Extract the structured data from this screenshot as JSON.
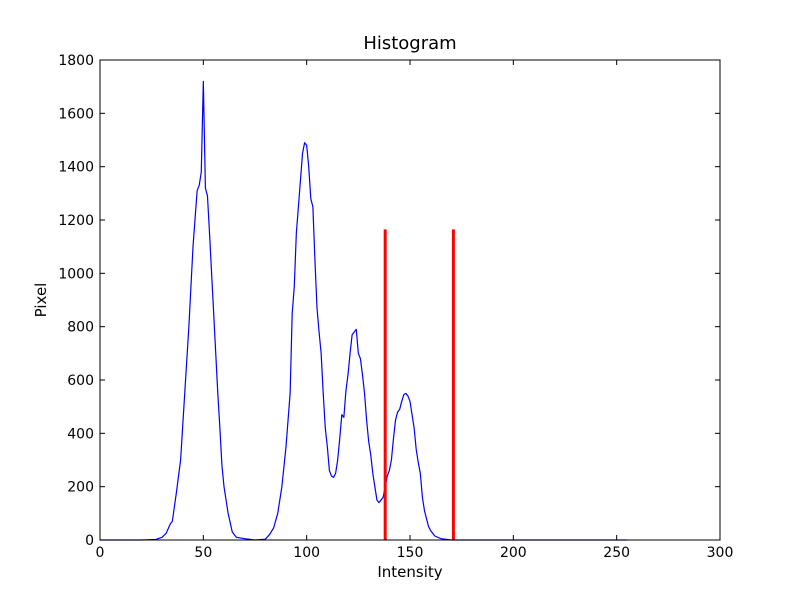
{
  "chart_data": {
    "type": "line",
    "title": "Histogram",
    "xlabel": "Intensity",
    "ylabel": "Pixel",
    "xlim": [
      0,
      300
    ],
    "ylim": [
      0,
      1800
    ],
    "xticks": [
      "0",
      "50",
      "100",
      "150",
      "200",
      "250",
      "300"
    ],
    "yticks": [
      "0",
      "200",
      "400",
      "600",
      "800",
      "1000",
      "1200",
      "1400",
      "1600",
      "1800"
    ],
    "grid": false,
    "legend": "none",
    "series": [
      {
        "color": "#0000ff",
        "points": [
          [
            0,
            0
          ],
          [
            10,
            0
          ],
          [
            20,
            0
          ],
          [
            27,
            2
          ],
          [
            30,
            10
          ],
          [
            32,
            25
          ],
          [
            34,
            60
          ],
          [
            35,
            70
          ],
          [
            37,
            180
          ],
          [
            39,
            300
          ],
          [
            41,
            550
          ],
          [
            43,
            800
          ],
          [
            45,
            1100
          ],
          [
            47,
            1310
          ],
          [
            48,
            1330
          ],
          [
            49,
            1380
          ],
          [
            50,
            1720
          ],
          [
            51,
            1320
          ],
          [
            52,
            1290
          ],
          [
            53,
            1150
          ],
          [
            54,
            1000
          ],
          [
            55,
            850
          ],
          [
            56,
            700
          ],
          [
            57,
            550
          ],
          [
            58,
            420
          ],
          [
            59,
            280
          ],
          [
            60,
            200
          ],
          [
            62,
            100
          ],
          [
            64,
            30
          ],
          [
            66,
            10
          ],
          [
            70,
            5
          ],
          [
            75,
            0
          ],
          [
            80,
            3
          ],
          [
            82,
            20
          ],
          [
            84,
            45
          ],
          [
            86,
            100
          ],
          [
            88,
            200
          ],
          [
            90,
            350
          ],
          [
            92,
            550
          ],
          [
            93,
            850
          ],
          [
            94,
            950
          ],
          [
            95,
            1150
          ],
          [
            96,
            1250
          ],
          [
            97,
            1350
          ],
          [
            98,
            1450
          ],
          [
            99,
            1490
          ],
          [
            100,
            1480
          ],
          [
            101,
            1400
          ],
          [
            102,
            1280
          ],
          [
            103,
            1250
          ],
          [
            104,
            1050
          ],
          [
            105,
            870
          ],
          [
            106,
            780
          ],
          [
            107,
            700
          ],
          [
            108,
            550
          ],
          [
            109,
            420
          ],
          [
            110,
            350
          ],
          [
            111,
            260
          ],
          [
            112,
            240
          ],
          [
            113,
            235
          ],
          [
            114,
            250
          ],
          [
            115,
            300
          ],
          [
            116,
            380
          ],
          [
            117,
            470
          ],
          [
            118,
            460
          ],
          [
            119,
            560
          ],
          [
            120,
            620
          ],
          [
            121,
            700
          ],
          [
            122,
            770
          ],
          [
            123,
            780
          ],
          [
            124,
            790
          ],
          [
            125,
            700
          ],
          [
            126,
            680
          ],
          [
            127,
            620
          ],
          [
            128,
            550
          ],
          [
            129,
            450
          ],
          [
            130,
            370
          ],
          [
            131,
            320
          ],
          [
            132,
            250
          ],
          [
            133,
            200
          ],
          [
            134,
            150
          ],
          [
            135,
            140
          ],
          [
            136,
            150
          ],
          [
            137,
            160
          ],
          [
            138,
            200
          ],
          [
            139,
            240
          ],
          [
            140,
            260
          ],
          [
            141,
            300
          ],
          [
            142,
            380
          ],
          [
            143,
            450
          ],
          [
            144,
            480
          ],
          [
            145,
            490
          ],
          [
            146,
            520
          ],
          [
            147,
            545
          ],
          [
            148,
            550
          ],
          [
            149,
            540
          ],
          [
            150,
            520
          ],
          [
            151,
            470
          ],
          [
            152,
            420
          ],
          [
            153,
            340
          ],
          [
            154,
            290
          ],
          [
            155,
            250
          ],
          [
            156,
            160
          ],
          [
            157,
            110
          ],
          [
            158,
            80
          ],
          [
            159,
            50
          ],
          [
            160,
            35
          ],
          [
            162,
            15
          ],
          [
            165,
            5
          ],
          [
            170,
            0
          ],
          [
            200,
            0
          ],
          [
            250,
            0
          ],
          [
            255,
            0
          ]
        ]
      }
    ],
    "vlines": [
      {
        "x": 138,
        "ymin": 0,
        "ymax": 1165,
        "color": "#ff0000"
      },
      {
        "x": 171,
        "ymin": 0,
        "ymax": 1165,
        "color": "#ff0000"
      }
    ]
  }
}
